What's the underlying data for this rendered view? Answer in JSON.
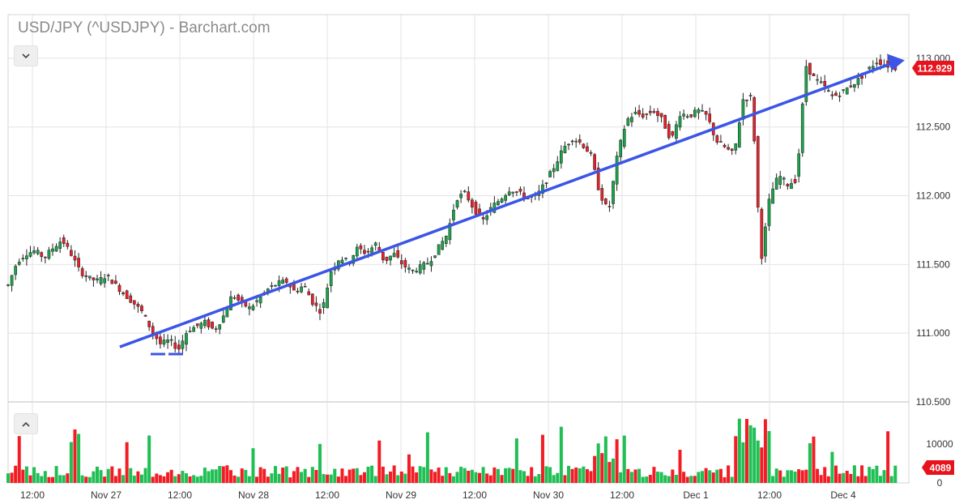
{
  "header": {
    "title": "USD/JPY (^USDJPY) - Barchart.com",
    "collapse_icon": "chevron-down-icon",
    "expand_icon": "chevron-up-icon"
  },
  "chart_data": {
    "type": "candlestick",
    "title": "USD/JPY (^USDJPY) - Barchart.com",
    "price_axis": {
      "ticks": [
        "113.000",
        "112.500",
        "112.000",
        "111.500",
        "111.000",
        "110.500"
      ],
      "ylim": [
        110.5,
        113.2
      ]
    },
    "volume_axis": {
      "ticks": [
        "10000",
        "0"
      ],
      "ylim": [
        0,
        16000
      ]
    },
    "x_ticks": [
      "12:00",
      "Nov 27",
      "12:00",
      "Nov 28",
      "12:00",
      "Nov 29",
      "12:00",
      "Nov 30",
      "12:00",
      "Dec 1",
      "12:00",
      "Dec 4"
    ],
    "last_price": "112.929",
    "last_volume": "4089",
    "trendline": {
      "from": [
        0.08,
        110.9
      ],
      "to": [
        0.99,
        112.98
      ]
    },
    "candles_note": "",
    "price_path": [
      [
        0.0,
        111.35
      ],
      [
        0.01,
        111.52
      ],
      [
        0.02,
        111.58
      ],
      [
        0.03,
        111.6
      ],
      [
        0.04,
        111.55
      ],
      [
        0.05,
        111.62
      ],
      [
        0.06,
        111.68
      ],
      [
        0.07,
        111.58
      ],
      [
        0.08,
        111.45
      ],
      [
        0.09,
        111.4
      ],
      [
        0.1,
        111.38
      ],
      [
        0.11,
        111.42
      ],
      [
        0.12,
        111.35
      ],
      [
        0.13,
        111.28
      ],
      [
        0.14,
        111.22
      ],
      [
        0.15,
        111.15
      ],
      [
        0.16,
        111.02
      ],
      [
        0.17,
        110.92
      ],
      [
        0.18,
        110.95
      ],
      [
        0.19,
        110.88
      ],
      [
        0.2,
        111.02
      ],
      [
        0.21,
        111.05
      ],
      [
        0.22,
        111.08
      ],
      [
        0.23,
        111.02
      ],
      [
        0.24,
        111.12
      ],
      [
        0.25,
        111.28
      ],
      [
        0.26,
        111.22
      ],
      [
        0.27,
        111.18
      ],
      [
        0.28,
        111.25
      ],
      [
        0.29,
        111.32
      ],
      [
        0.3,
        111.36
      ],
      [
        0.31,
        111.38
      ],
      [
        0.32,
        111.3
      ],
      [
        0.33,
        111.35
      ],
      [
        0.34,
        111.22
      ],
      [
        0.35,
        111.15
      ],
      [
        0.36,
        111.45
      ],
      [
        0.37,
        111.55
      ],
      [
        0.38,
        111.52
      ],
      [
        0.39,
        111.62
      ],
      [
        0.4,
        111.58
      ],
      [
        0.41,
        111.65
      ],
      [
        0.42,
        111.52
      ],
      [
        0.43,
        111.58
      ],
      [
        0.44,
        111.5
      ],
      [
        0.45,
        111.45
      ],
      [
        0.46,
        111.48
      ],
      [
        0.47,
        111.52
      ],
      [
        0.48,
        111.62
      ],
      [
        0.49,
        111.72
      ],
      [
        0.5,
        111.98
      ],
      [
        0.51,
        112.02
      ],
      [
        0.52,
        111.9
      ],
      [
        0.53,
        111.82
      ],
      [
        0.54,
        111.92
      ],
      [
        0.55,
        111.98
      ],
      [
        0.56,
        112.05
      ],
      [
        0.57,
        112.02
      ],
      [
        0.58,
        111.98
      ],
      [
        0.59,
        112.0
      ],
      [
        0.6,
        112.1
      ],
      [
        0.61,
        112.22
      ],
      [
        0.62,
        112.35
      ],
      [
        0.63,
        112.42
      ],
      [
        0.64,
        112.38
      ],
      [
        0.65,
        112.3
      ],
      [
        0.66,
        112.02
      ],
      [
        0.67,
        111.88
      ],
      [
        0.68,
        112.3
      ],
      [
        0.69,
        112.55
      ],
      [
        0.7,
        112.6
      ],
      [
        0.71,
        112.58
      ],
      [
        0.72,
        112.62
      ],
      [
        0.73,
        112.55
      ],
      [
        0.74,
        112.4
      ],
      [
        0.75,
        112.6
      ],
      [
        0.76,
        112.58
      ],
      [
        0.77,
        112.62
      ],
      [
        0.78,
        112.58
      ],
      [
        0.79,
        112.4
      ],
      [
        0.8,
        112.35
      ],
      [
        0.81,
        112.3
      ],
      [
        0.82,
        112.7
      ],
      [
        0.83,
        112.72
      ],
      [
        0.84,
        111.52
      ],
      [
        0.85,
        112.0
      ],
      [
        0.86,
        112.15
      ],
      [
        0.87,
        112.08
      ],
      [
        0.88,
        112.12
      ],
      [
        0.89,
        112.95
      ],
      [
        0.9,
        112.85
      ],
      [
        0.91,
        112.8
      ],
      [
        0.92,
        112.72
      ],
      [
        0.93,
        112.75
      ],
      [
        0.94,
        112.8
      ],
      [
        0.95,
        112.85
      ],
      [
        0.96,
        112.92
      ],
      [
        0.97,
        112.98
      ],
      [
        0.98,
        112.95
      ],
      [
        0.99,
        112.93
      ]
    ]
  }
}
